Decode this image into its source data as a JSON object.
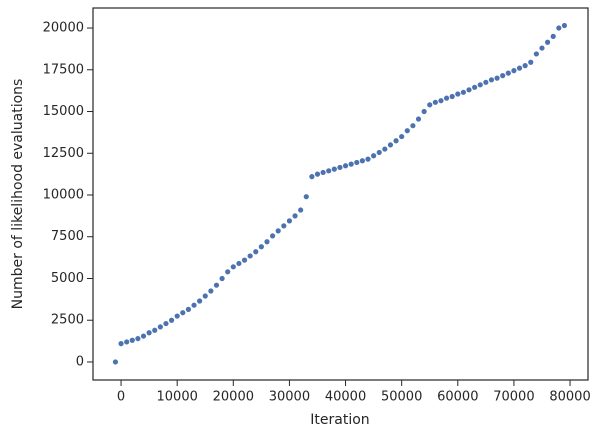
{
  "chart_data": {
    "type": "scatter",
    "xlabel": "Iteration",
    "ylabel": "Number of likelihood evaluations",
    "color": "#4c72b0",
    "x": [
      -1000,
      0,
      1000,
      2000,
      3000,
      4000,
      5000,
      6000,
      7000,
      8000,
      9000,
      10000,
      11000,
      12000,
      13000,
      14000,
      15000,
      16000,
      17000,
      18000,
      19000,
      20000,
      21000,
      22000,
      23000,
      24000,
      25000,
      26000,
      27000,
      28000,
      29000,
      30000,
      31000,
      32000,
      33000,
      34000,
      35000,
      36000,
      37000,
      38000,
      39000,
      40000,
      41000,
      42000,
      43000,
      44000,
      45000,
      46000,
      47000,
      48000,
      49000,
      50000,
      51000,
      52000,
      53000,
      54000,
      55000,
      56000,
      57000,
      58000,
      59000,
      60000,
      61000,
      62000,
      63000,
      64000,
      65000,
      66000,
      67000,
      68000,
      69000,
      70000,
      71000,
      72000,
      73000,
      74000,
      75000,
      76000,
      77000,
      78000,
      79000
    ],
    "values": [
      0,
      1100,
      1200,
      1300,
      1400,
      1550,
      1750,
      1900,
      2100,
      2300,
      2500,
      2750,
      2950,
      3150,
      3400,
      3650,
      3950,
      4250,
      4600,
      5000,
      5400,
      5700,
      5900,
      6100,
      6350,
      6600,
      6900,
      7200,
      7550,
      7850,
      8150,
      8450,
      8750,
      9100,
      9900,
      11100,
      11250,
      11350,
      11450,
      11550,
      11650,
      11750,
      11850,
      11950,
      12050,
      12150,
      12350,
      12550,
      12750,
      13000,
      13250,
      13500,
      13850,
      14150,
      14550,
      15000,
      15400,
      15550,
      15650,
      15800,
      15900,
      16050,
      16150,
      16300,
      16450,
      16600,
      16750,
      16900,
      17000,
      17150,
      17300,
      17450,
      17600,
      17750,
      17950,
      18450,
      18800,
      19150,
      19500,
      20000,
      20150
    ],
    "xlim": [
      -5000,
      83200
    ],
    "ylim": [
      -1080,
      21200
    ],
    "xticks": [
      0,
      10000,
      20000,
      30000,
      40000,
      50000,
      60000,
      70000,
      80000
    ],
    "yticks": [
      0,
      2500,
      5000,
      7500,
      10000,
      12500,
      15000,
      17500,
      20000
    ]
  }
}
